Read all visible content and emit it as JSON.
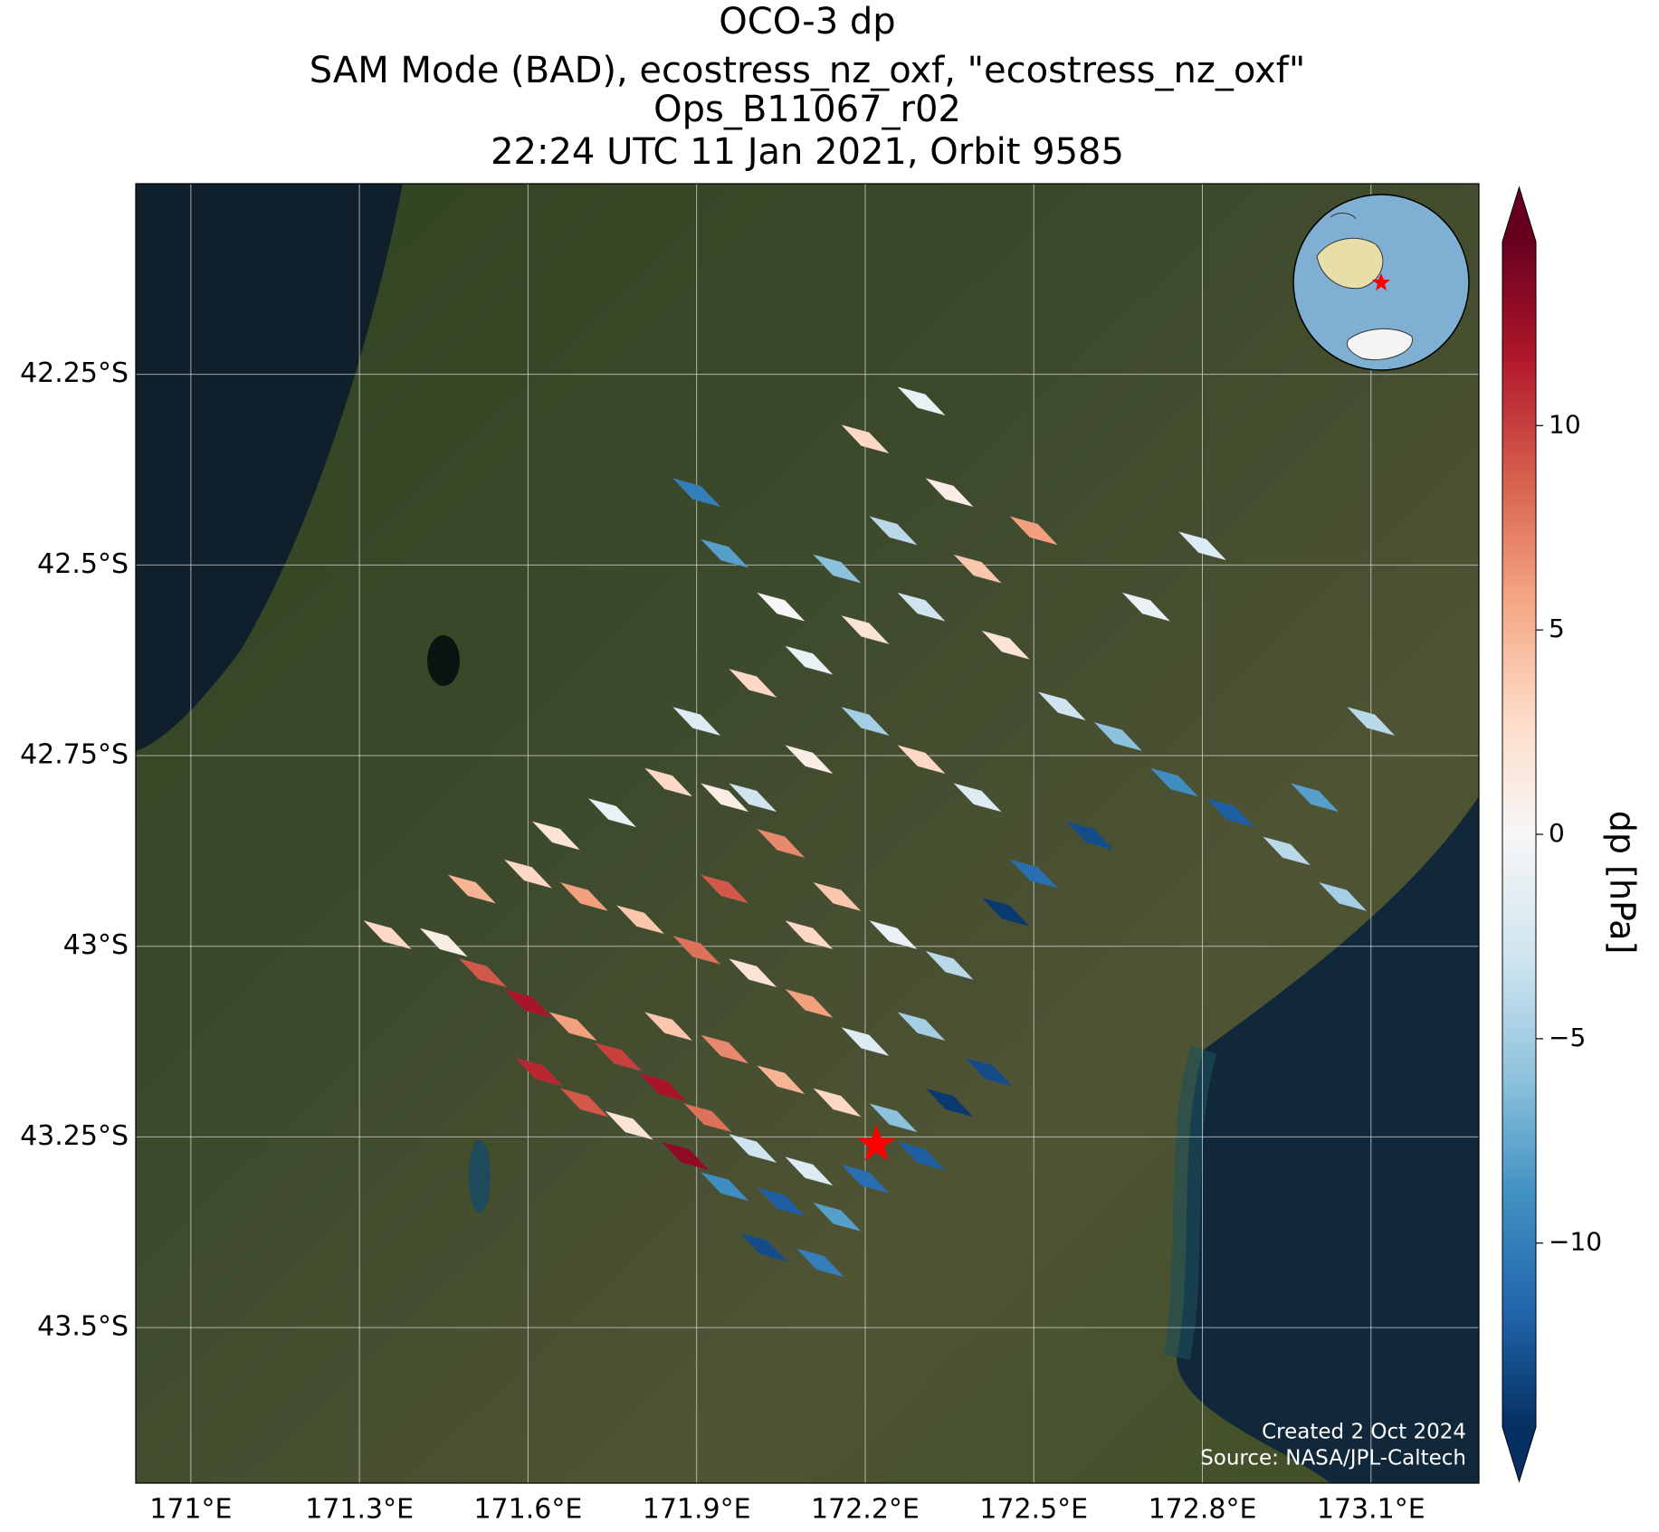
{
  "map": {
    "type": "swath",
    "title": [
      "OCO-3 dp",
      "SAM Mode (BAD), ecostress_nz_oxf, \"ecostress_nz_oxf\"",
      "Ops_B11067_r02",
      "22:24 UTC 11 Jan 2021, Orbit 9585"
    ],
    "xlim": [
      170.902,
      173.292
    ],
    "ylim": [
      -43.704,
      -42.0
    ],
    "xticks": [
      {
        "value": 171,
        "label": "171°E"
      },
      {
        "value": 171.3,
        "label": "171.3°E"
      },
      {
        "value": 171.6,
        "label": "171.6°E"
      },
      {
        "value": 171.9,
        "label": "171.9°E"
      },
      {
        "value": 172.2,
        "label": "172.2°E"
      },
      {
        "value": 172.5,
        "label": "172.5°E"
      },
      {
        "value": 172.8,
        "label": "172.8°E"
      },
      {
        "value": 173.1,
        "label": "173.1°E"
      }
    ],
    "yticks": [
      {
        "value": -42.25,
        "label": "42.25°S"
      },
      {
        "value": -42.5,
        "label": "42.5°S"
      },
      {
        "value": -42.75,
        "label": "42.75°S"
      },
      {
        "value": -43,
        "label": "43°S"
      },
      {
        "value": -43.25,
        "label": "43.25°S"
      },
      {
        "value": -43.5,
        "label": "43.5°S"
      }
    ],
    "grid": true,
    "colorbar": {
      "label": "dp [hPa]",
      "clim": [
        -14.5,
        14.5
      ],
      "extend": "both",
      "ticks": [
        {
          "value": -10,
          "label": "−10"
        },
        {
          "value": -5,
          "label": "−5"
        },
        0,
        5,
        10
      ],
      "colormap": [
        "#053061",
        "#2166ac",
        "#4393c3",
        "#92c5de",
        "#d1e5f0",
        "#f7f7f7",
        "#fddbc7",
        "#f4a582",
        "#d6604d",
        "#b2182b",
        "#67001f"
      ]
    },
    "cells": {
      "lon": [
        171.35,
        171.45,
        171.52,
        171.6,
        171.68,
        171.76,
        171.84,
        171.92,
        172.0,
        171.62,
        171.7,
        171.78,
        171.88,
        171.95,
        172.05,
        172.15,
        172.1,
        172.2,
        172.02,
        172.12,
        172.3,
        172.35,
        172.42,
        172.25,
        172.15,
        172.05,
        171.95,
        171.85,
        172.2,
        172.3,
        172.1,
        172.0,
        171.9,
        171.8,
        171.7,
        171.6,
        171.5,
        171.65,
        171.75,
        171.85,
        171.95,
        172.05,
        172.15,
        172.25,
        172.35,
        171.95,
        172.1,
        171.9,
        172.0,
        172.1,
        172.2,
        172.3,
        172.4,
        172.5,
        172.35,
        172.25,
        172.15,
        172.05,
        171.95,
        171.9,
        172.2,
        172.3,
        172.45,
        172.55,
        172.65,
        172.75,
        172.85,
        172.95,
        173.05,
        172.6,
        172.5,
        172.4,
        172.3,
        172.2,
        172.1,
        172.0,
        172.45,
        172.7,
        172.8,
        173.1,
        173.0
      ],
      "lat": [
        -42.98,
        -42.99,
        -43.03,
        -43.07,
        -43.1,
        -43.14,
        -43.18,
        -43.22,
        -43.26,
        -43.16,
        -43.2,
        -43.23,
        -43.27,
        -43.31,
        -43.33,
        -43.35,
        -43.29,
        -43.3,
        -43.39,
        -43.41,
        -43.27,
        -43.2,
        -43.16,
        -43.22,
        -43.2,
        -43.17,
        -43.13,
        -43.1,
        -43.12,
        -43.1,
        -43.07,
        -43.03,
        -43.0,
        -42.96,
        -42.93,
        -42.9,
        -42.92,
        -42.85,
        -42.82,
        -42.78,
        -42.8,
        -42.86,
        -42.93,
        -42.98,
        -43.02,
        -42.92,
        -42.98,
        -42.7,
        -42.65,
        -42.62,
        -42.58,
        -42.55,
        -42.5,
        -42.45,
        -42.4,
        -42.45,
        -42.5,
        -42.55,
        -42.48,
        -42.4,
        -42.33,
        -42.28,
        -42.6,
        -42.68,
        -42.72,
        -42.78,
        -42.82,
        -42.87,
        -42.93,
        -42.85,
        -42.9,
        -42.8,
        -42.75,
        -42.7,
        -42.75,
        -42.8,
        -42.95,
        -42.55,
        -42.47,
        -42.7,
        -42.8
      ],
      "values": [
        3,
        1,
        9,
        12,
        6,
        10,
        12,
        8,
        -3,
        11,
        9,
        2,
        13,
        -9,
        -12,
        -8,
        -2,
        -11,
        -13,
        -10,
        -12,
        -14,
        -13,
        -6,
        3,
        5,
        7,
        4,
        -2,
        -5,
        6,
        2,
        8,
        4,
        6,
        3,
        5,
        2,
        -1,
        3,
        1,
        7,
        4,
        -1,
        -4,
        9,
        3,
        -2,
        3,
        -1,
        2,
        -3,
        4,
        6,
        1,
        -4,
        -6,
        0,
        -8,
        -10,
        3,
        -1,
        2,
        -3,
        -6,
        -9,
        -12,
        -4,
        -5,
        -13,
        -11,
        -2,
        3,
        -5,
        1,
        -3,
        -14,
        -1,
        -2,
        -4,
        -8
      ]
    },
    "site": {
      "lon": 172.22,
      "lat": -43.26
    },
    "credits": [
      "Created 2 Oct 2024",
      "Source: NASA/JPL-Caltech"
    ]
  }
}
